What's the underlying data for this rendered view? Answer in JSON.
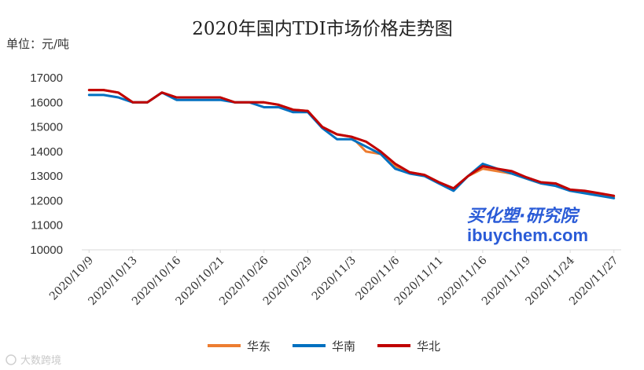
{
  "chart_data": {
    "type": "line",
    "title": "2020年国内TDI市场价格走势图",
    "unit_label": "单位：元/吨",
    "ylim": [
      10000,
      17000
    ],
    "yticks": [
      10000,
      11000,
      12000,
      13000,
      14000,
      15000,
      16000,
      17000
    ],
    "tick_labels": [
      "2020/10/9",
      "2020/10/13",
      "2020/10/16",
      "2020/10/21",
      "2020/10/26",
      "2020/10/29",
      "2020/11/3",
      "2020/11/6",
      "2020/11/11",
      "2020/11/16",
      "2020/11/19",
      "2020/11/24",
      "2020/11/27"
    ],
    "tick_every": 3,
    "n_points": 37,
    "series": [
      {
        "name": "华东",
        "color": "#ED7D31",
        "values": [
          16500,
          16500,
          16400,
          16000,
          16000,
          16400,
          16200,
          16200,
          16200,
          16200,
          16000,
          16000,
          16000,
          15900,
          15700,
          15650,
          15000,
          14700,
          14600,
          14000,
          13900,
          13400,
          13150,
          13050,
          12750,
          12500,
          13000,
          13300,
          13200,
          13100,
          12900,
          12700,
          12700,
          12450,
          12350,
          12250,
          12150
        ]
      },
      {
        "name": "华南",
        "color": "#0070C0",
        "values": [
          16300,
          16300,
          16200,
          16000,
          16000,
          16400,
          16100,
          16100,
          16100,
          16100,
          16000,
          16000,
          15800,
          15800,
          15600,
          15600,
          14950,
          14500,
          14500,
          14200,
          13900,
          13300,
          13100,
          13000,
          12700,
          12400,
          13000,
          13500,
          13300,
          13100,
          12900,
          12700,
          12600,
          12400,
          12300,
          12200,
          12100
        ]
      },
      {
        "name": "华北",
        "color": "#C00000",
        "values": [
          16500,
          16500,
          16400,
          16000,
          16000,
          16400,
          16200,
          16200,
          16200,
          16200,
          16000,
          16000,
          16000,
          15900,
          15700,
          15650,
          15000,
          14700,
          14600,
          14400,
          14000,
          13500,
          13150,
          13050,
          12750,
          12500,
          13000,
          13400,
          13300,
          13200,
          12950,
          12750,
          12700,
          12450,
          12400,
          12300,
          12200
        ]
      }
    ]
  },
  "watermark": {
    "cn": "买化塑·研究院",
    "en": "ibuychem.com"
  },
  "source_mark": "大数跨境"
}
